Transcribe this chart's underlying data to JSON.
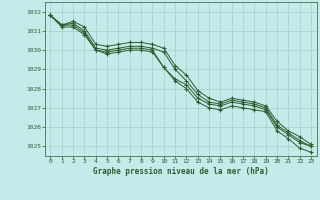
{
  "title": "Graphe pression niveau de la mer (hPa)",
  "background_color": "#c6eaea",
  "grid_color": "#a8cccc",
  "line_color": "#2d5c2d",
  "marker_color": "#2d5c2d",
  "xlim": [
    -0.5,
    23.5
  ],
  "ylim": [
    1024.5,
    1032.5
  ],
  "yticks": [
    1025,
    1026,
    1027,
    1028,
    1029,
    1030,
    1031,
    1032
  ],
  "xticks": [
    0,
    1,
    2,
    3,
    4,
    5,
    6,
    7,
    8,
    9,
    10,
    11,
    12,
    13,
    14,
    15,
    16,
    17,
    18,
    19,
    20,
    21,
    22,
    23
  ],
  "series": [
    [
      1031.8,
      1031.3,
      1031.5,
      1031.2,
      1030.3,
      1030.2,
      1030.3,
      1030.4,
      1030.4,
      1030.3,
      1030.1,
      1029.2,
      1028.7,
      1027.9,
      1027.5,
      1027.3,
      1027.5,
      1027.4,
      1027.3,
      1027.1,
      1026.3,
      1025.8,
      1025.5,
      1025.1
    ],
    [
      1031.8,
      1031.3,
      1031.4,
      1031.0,
      1030.1,
      1030.0,
      1030.1,
      1030.2,
      1030.2,
      1030.1,
      1029.9,
      1029.0,
      1028.4,
      1027.7,
      1027.3,
      1027.2,
      1027.4,
      1027.3,
      1027.2,
      1027.0,
      1026.1,
      1025.7,
      1025.3,
      1025.0
    ],
    [
      1031.8,
      1031.3,
      1031.3,
      1030.9,
      1030.0,
      1029.9,
      1030.0,
      1030.1,
      1030.1,
      1030.0,
      1029.1,
      1028.5,
      1028.2,
      1027.5,
      1027.2,
      1027.1,
      1027.3,
      1027.2,
      1027.1,
      1026.9,
      1026.0,
      1025.6,
      1025.2,
      1025.0
    ],
    [
      1031.8,
      1031.2,
      1031.2,
      1030.8,
      1030.0,
      1029.8,
      1029.9,
      1030.0,
      1030.0,
      1029.9,
      1029.1,
      1028.4,
      1028.0,
      1027.3,
      1027.0,
      1026.9,
      1027.1,
      1027.0,
      1026.9,
      1026.8,
      1025.8,
      1025.4,
      1024.9,
      1024.7
    ]
  ]
}
